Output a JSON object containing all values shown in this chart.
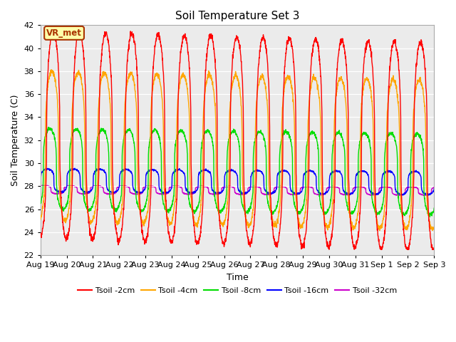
{
  "title": "Soil Temperature Set 3",
  "xlabel": "Time",
  "ylabel": "Soil Temperature (C)",
  "ylim": [
    22,
    42
  ],
  "yticks": [
    22,
    24,
    26,
    28,
    30,
    32,
    34,
    36,
    38,
    40,
    42
  ],
  "fig_facecolor": "#ffffff",
  "plot_bg_color": "#ebebeb",
  "series": {
    "Tsoil -2cm": {
      "color": "#ff0000",
      "lw": 1.0
    },
    "Tsoil -4cm": {
      "color": "#ffa500",
      "lw": 1.0
    },
    "Tsoil -8cm": {
      "color": "#00dd00",
      "lw": 1.0
    },
    "Tsoil -16cm": {
      "color": "#0000ff",
      "lw": 1.0
    },
    "Tsoil -32cm": {
      "color": "#cc00cc",
      "lw": 1.0
    }
  },
  "annotation_text": "VR_met",
  "annotation_color": "#aa3300",
  "annotation_bg": "#ffffaa",
  "x_tick_labels": [
    "Aug 19",
    "Aug 20",
    "Aug 21",
    "Aug 22",
    "Aug 23",
    "Aug 24",
    "Aug 25",
    "Aug 26",
    "Aug 27",
    "Aug 28",
    "Aug 29",
    "Aug 30",
    "Aug 31",
    "Sep 1",
    "Sep 2",
    "Sep 3"
  ],
  "n_days": 15
}
